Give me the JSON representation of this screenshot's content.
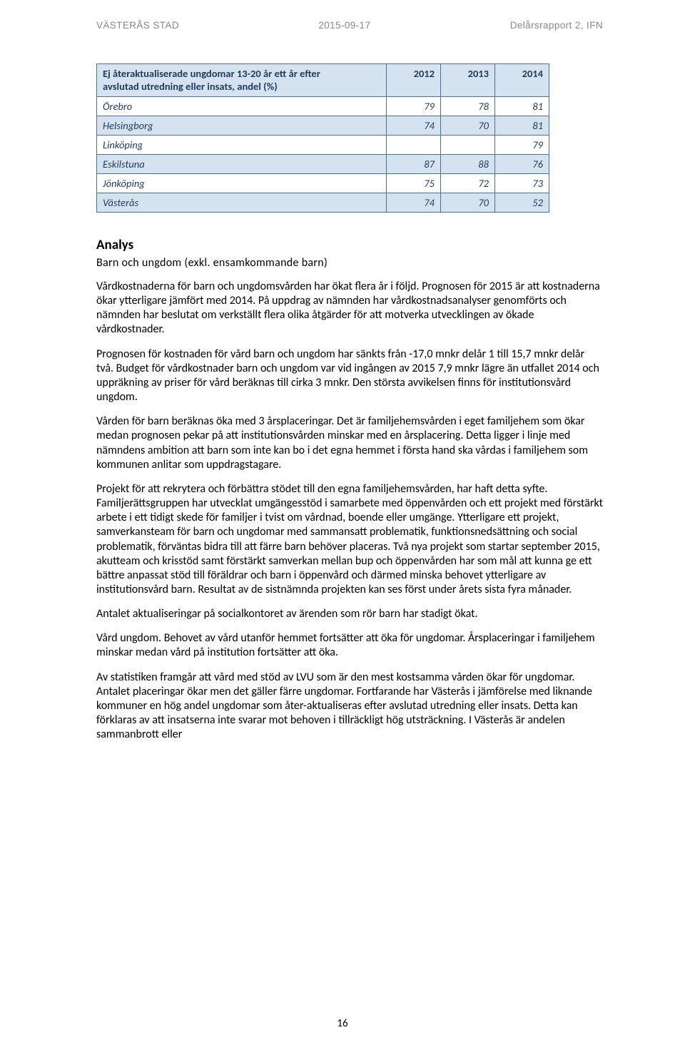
{
  "header": {
    "left": "VÄSTERÅS STAD",
    "center": "2015-09-17",
    "right": "Delårsrapport 2, IFN"
  },
  "table": {
    "title_line1": "Ej återaktualiserade ungdomar 13-20 år ett år efter",
    "title_line2": "avslutad utredning eller insats, andel (%)",
    "columns": [
      "2012",
      "2013",
      "2014"
    ],
    "rows": [
      {
        "name": "Örebro",
        "v": [
          "79",
          "78",
          "81"
        ]
      },
      {
        "name": "Helsingborg",
        "v": [
          "74",
          "70",
          "81"
        ]
      },
      {
        "name": "Linköping",
        "v": [
          "",
          "",
          "79"
        ]
      },
      {
        "name": "Eskilstuna",
        "v": [
          "87",
          "88",
          "76"
        ]
      },
      {
        "name": "Jönköping",
        "v": [
          "75",
          "72",
          "73"
        ]
      },
      {
        "name": "Västerås",
        "v": [
          "74",
          "70",
          "52"
        ]
      }
    ],
    "header_bg": "#d5e3f0",
    "row_even_bg": "#d5e3f0",
    "row_odd_bg": "#ffffff",
    "border_color": "#4f6f8f",
    "text_color": "#1e3a5f"
  },
  "section": {
    "heading": "Analys",
    "subheading": "Barn och ungdom (exkl. ensamkommande barn)",
    "paragraphs": [
      "Vårdkostnaderna för barn och ungdomsvården har ökat flera år i följd. Prognosen för 2015 är att kostnaderna ökar ytterligare jämfört med 2014. På uppdrag av nämnden har vårdkostnadsanalyser genomförts och nämnden har beslutat om verkställt flera olika åtgärder för att motverka utvecklingen av ökade vårdkostnader.",
      "Prognosen för kostnaden för vård barn och ungdom har sänkts från -17,0 mnkr delår 1 till 15,7 mnkr delår två. Budget för vårdkostnader barn och ungdom var vid ingången av 2015 7,9 mnkr lägre än utfallet 2014 och uppräkning av priser för vård beräknas till cirka 3 mnkr. Den största avvikelsen finns för institutionsvård ungdom.",
      "Vården för barn beräknas öka med 3 årsplaceringar. Det är familjehemsvården i eget familjehem som ökar medan prognosen pekar på att institutionsvården minskar med en årsplacering. Detta ligger i linje med nämndens ambition att barn som inte kan bo i det egna hemmet i första hand ska vårdas i familjehem som kommunen anlitar som uppdragstagare.",
      "Projekt för att rekrytera och förbättra stödet till den egna familjehemsvården, har haft detta syfte. Familjerättsgruppen har utvecklat umgängesstöd i samarbete med öppenvården och ett projekt med förstärkt arbete i ett tidigt skede för familjer i tvist om vårdnad, boende eller umgänge. Ytterligare ett projekt, samverkansteam för barn och ungdomar med sammansatt problematik, funktionsnedsättning och social problematik, förväntas bidra till att färre barn behöver placeras. Två nya projekt som startar september 2015, akutteam och krisstöd samt förstärkt samverkan mellan bup och öppenvården har som mål att kunna ge ett bättre anpassat stöd till föräldrar och barn i öppenvård och därmed minska behovet ytterligare av institutionsvård barn. Resultat av de sistnämnda projekten kan ses först under årets sista fyra månader.",
      "Antalet aktualiseringar på socialkontoret av ärenden som rör barn har stadigt ökat.",
      "Vård ungdom. Behovet av vård utanför hemmet fortsätter att öka för ungdomar. Årsplaceringar i familjehem minskar medan vård på institution fortsätter att öka.",
      "Av statistiken framgår att vård med stöd av LVU som är den mest kostsamma vården ökar för ungdomar. Antalet placeringar ökar men det gäller färre ungdomar. Fortfarande har Västerås i jämförelse med liknande kommuner en hög andel ungdomar som åter-aktualiseras efter avslutad utredning eller insats. Detta kan förklaras av att insatserna inte svarar mot behoven i tillräckligt hög utsträckning. I Västerås är andelen sammanbrott eller"
    ]
  },
  "page_number": "16"
}
